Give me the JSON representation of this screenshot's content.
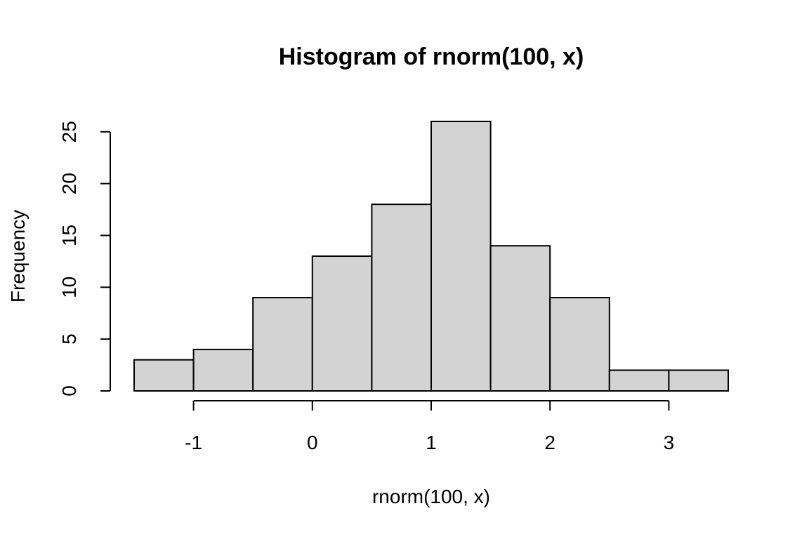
{
  "colors": {
    "bar_fill": "#d3d3d3",
    "bar_stroke": "#000000",
    "axis": "#000000",
    "background": "#ffffff"
  },
  "chart_data": {
    "type": "bar",
    "title": "Histogram of rnorm(100, x)",
    "xlabel": "rnorm(100, x)",
    "ylabel": "Frequency",
    "bin_edges": [
      -1.5,
      -1.0,
      -0.5,
      0.0,
      0.5,
      1.0,
      1.5,
      2.0,
      2.5,
      3.0,
      3.5
    ],
    "values": [
      3,
      4,
      9,
      13,
      18,
      26,
      14,
      9,
      2,
      2
    ],
    "xlim": [
      -1.5,
      3.5
    ],
    "ylim": [
      0,
      26
    ],
    "x_ticks": [
      -1,
      0,
      1,
      2,
      3
    ],
    "x_tick_labels": [
      "-1",
      "0",
      "1",
      "2",
      "3"
    ],
    "y_ticks": [
      0,
      5,
      10,
      15,
      20,
      25
    ],
    "y_tick_labels": [
      "0",
      "5",
      "10",
      "15",
      "20",
      "25"
    ],
    "grid": false,
    "legend": "none"
  }
}
